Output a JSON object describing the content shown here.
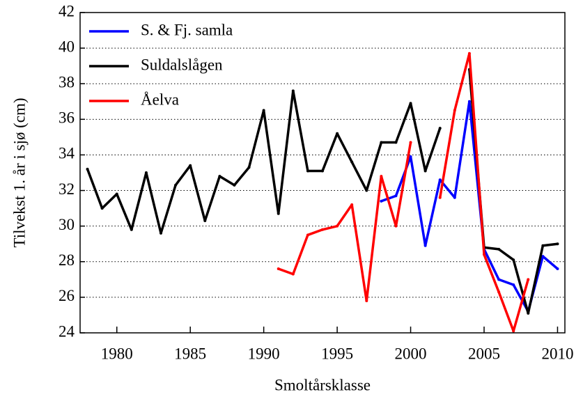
{
  "chart_data": {
    "type": "line",
    "xlabel": "Smoltårsklasse",
    "ylabel": "Tilvekst 1. år i sjø (cm)",
    "x": [
      1978,
      1979,
      1980,
      1981,
      1982,
      1983,
      1984,
      1985,
      1986,
      1987,
      1988,
      1989,
      1990,
      1991,
      1992,
      1993,
      1994,
      1995,
      1996,
      1997,
      1998,
      1999,
      2000,
      2001,
      2002,
      2003,
      2004,
      2005,
      2006,
      2007,
      2008,
      2009,
      2010
    ],
    "series": [
      {
        "name": "S. & Fj. samla",
        "color": "#0000ff",
        "values": [
          null,
          null,
          null,
          null,
          null,
          null,
          null,
          null,
          null,
          null,
          null,
          null,
          null,
          null,
          null,
          null,
          null,
          null,
          null,
          null,
          31.4,
          31.7,
          33.9,
          28.9,
          32.6,
          31.6,
          37.0,
          28.7,
          27.0,
          26.7,
          25.2,
          28.3,
          27.6
        ]
      },
      {
        "name": "Suldalslågen",
        "color": "#000000",
        "values": [
          33.2,
          31.0,
          31.8,
          29.8,
          33.0,
          29.6,
          32.3,
          33.4,
          30.3,
          32.8,
          32.3,
          33.3,
          36.5,
          30.7,
          37.6,
          33.1,
          33.1,
          35.2,
          33.6,
          32.0,
          34.7,
          34.7,
          36.9,
          33.1,
          35.5,
          null,
          38.8,
          28.8,
          28.7,
          28.1,
          25.1,
          28.9,
          29.0
        ]
      },
      {
        "name": "Åelva",
        "color": "#ff0000",
        "values": [
          null,
          null,
          null,
          null,
          null,
          null,
          null,
          null,
          null,
          null,
          null,
          null,
          null,
          27.6,
          27.3,
          29.5,
          29.8,
          30.0,
          31.2,
          25.8,
          32.8,
          30.0,
          34.7,
          null,
          31.6,
          36.5,
          39.7,
          28.4,
          26.3,
          24.1,
          27.0,
          null,
          null
        ]
      }
    ],
    "xlim": [
      1977.5,
      2010.5
    ],
    "xticks": [
      1980,
      1985,
      1990,
      1995,
      2000,
      2005,
      2010
    ],
    "ylim": [
      24,
      42
    ],
    "yticks": [
      24,
      26,
      28,
      30,
      32,
      34,
      36,
      38,
      40,
      42
    ],
    "grid": true,
    "legend": "upper-left"
  }
}
